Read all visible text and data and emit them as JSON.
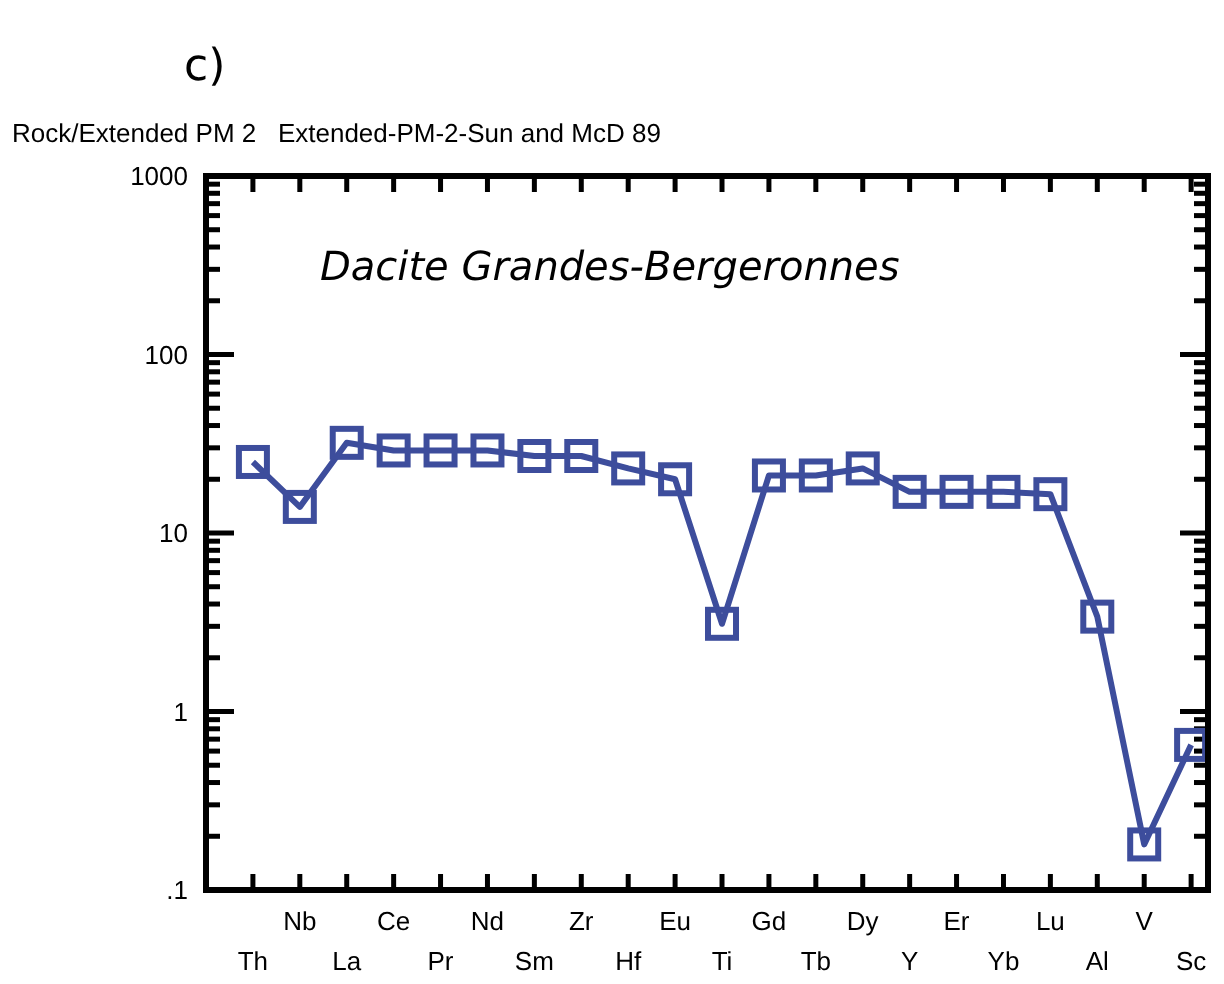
{
  "chart_data": {
    "type": "line",
    "title": "Rock/Extended PM 2   Extended-PM-2-Sun and McD 89",
    "annotations": [
      "c)",
      "Dacite Grandes-Bergeronnes"
    ],
    "categories": [
      "Th",
      "Nb",
      "La",
      "Ce",
      "Pr",
      "Nd",
      "Sm",
      "Zr",
      "Hf",
      "Eu",
      "Ti",
      "Gd",
      "Tb",
      "Dy",
      "Y",
      "Er",
      "Yb",
      "Lu",
      "Al",
      "V",
      "Sc"
    ],
    "series": [
      {
        "color": "#3d4d9c",
        "values": [
          25,
          14,
          32,
          29,
          29,
          29,
          27,
          27,
          23,
          20,
          3.1,
          21,
          21,
          23,
          17,
          17,
          17,
          16.5,
          3.4,
          0.18,
          0.65
        ]
      }
    ],
    "log": true,
    "ylim": [
      0.1,
      1000
    ],
    "yticks": [
      {
        "value": 0.1,
        "label": ".1"
      },
      {
        "value": 0.2,
        "label": null
      },
      {
        "value": 0.3,
        "label": null
      },
      {
        "value": 0.4,
        "label": null
      },
      {
        "value": 0.5,
        "label": null
      },
      {
        "value": 0.6,
        "label": null
      },
      {
        "value": 0.7,
        "label": null
      },
      {
        "value": 0.8,
        "label": null
      },
      {
        "value": 0.9,
        "label": null
      },
      1,
      {
        "value": 2,
        "label": null
      },
      {
        "value": 3,
        "label": null
      },
      {
        "value": 4,
        "label": null
      },
      {
        "value": 5,
        "label": null
      },
      {
        "value": 6,
        "label": null
      },
      {
        "value": 7,
        "label": null
      },
      {
        "value": 8,
        "label": null
      },
      {
        "value": 9,
        "label": null
      },
      10,
      {
        "value": 20,
        "label": null
      },
      {
        "value": 30,
        "label": null
      },
      {
        "value": 40,
        "label": null
      },
      {
        "value": 50,
        "label": null
      },
      {
        "value": 60,
        "label": null
      },
      {
        "value": 70,
        "label": null
      },
      {
        "value": 80,
        "label": null
      },
      {
        "value": 90,
        "label": null
      },
      100,
      {
        "value": 200,
        "label": null
      },
      {
        "value": 300,
        "label": null
      },
      {
        "value": 400,
        "label": null
      },
      {
        "value": 500,
        "label": null
      },
      {
        "value": 600,
        "label": null
      },
      {
        "value": 700,
        "label": null
      },
      {
        "value": 800,
        "label": null
      },
      {
        "value": 900,
        "label": null
      },
      1000
    ],
    "marker": "square",
    "line_style": "solid",
    "grid": false
  }
}
